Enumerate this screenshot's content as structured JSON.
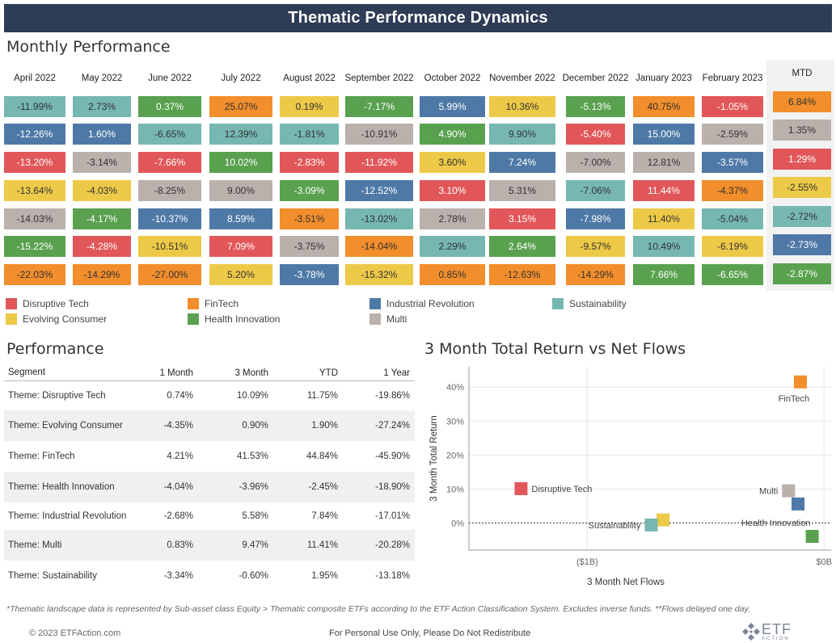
{
  "page": {
    "title": "Thematic Performance Dynamics",
    "monthly_heading": "Monthly Performance",
    "performance_heading": "Performance",
    "scatter_heading": "3 Month Total Return vs Net Flows",
    "footnote": "*Thematic landscape data is represented by Sub-asset class Equity > Thematic composite ETFs according to the ETF Action Classification System. Excludes inverse funds. **Flows delayed one day.",
    "copyright": "© 2023 ETFAction.com",
    "personal_use": "For Personal Use Only, Please Do Not Redistribute",
    "logo_text": "ETF",
    "logo_subtext": "ACTION"
  },
  "theme_colors": {
    "Disruptive Tech": "#e15759",
    "FinTech": "#f28e2b",
    "Industrial Revolution": "#4e79a7",
    "Sustainability": "#76b7b2",
    "Evolving Consumer": "#edc948",
    "Health Innovation": "#59a14f",
    "Multi": "#bab0ac"
  },
  "legend": [
    {
      "label": "Disruptive Tech",
      "theme": "Disruptive Tech"
    },
    {
      "label": "FinTech",
      "theme": "FinTech"
    },
    {
      "label": "Industrial Revolution",
      "theme": "Industrial Revolution"
    },
    {
      "label": "Sustainability",
      "theme": "Sustainability"
    },
    {
      "label": "Evolving Consumer",
      "theme": "Evolving Consumer"
    },
    {
      "label": "Health Innovation",
      "theme": "Health Innovation"
    },
    {
      "label": "Multi",
      "theme": "Multi"
    }
  ],
  "chart_data": [
    {
      "type": "heatmap",
      "title": "Monthly Performance",
      "columns": [
        {
          "header": "April 2022",
          "cells": [
            {
              "theme": "Sustainability",
              "value": "-11.99%"
            },
            {
              "theme": "Industrial Revolution",
              "value": "-12.26%"
            },
            {
              "theme": "Disruptive Tech",
              "value": "-13.20%"
            },
            {
              "theme": "Evolving Consumer",
              "value": "-13.64%"
            },
            {
              "theme": "Multi",
              "value": "-14.03%"
            },
            {
              "theme": "Health Innovation",
              "value": "-15.22%"
            },
            {
              "theme": "FinTech",
              "value": "-22.03%"
            }
          ]
        },
        {
          "header": "May 2022",
          "cells": [
            {
              "theme": "Sustainability",
              "value": "2.73%"
            },
            {
              "theme": "Industrial Revolution",
              "value": "1.60%"
            },
            {
              "theme": "Multi",
              "value": "-3.14%"
            },
            {
              "theme": "Evolving Consumer",
              "value": "-4.03%"
            },
            {
              "theme": "Health Innovation",
              "value": "-4.17%"
            },
            {
              "theme": "Disruptive Tech",
              "value": "-4.28%"
            },
            {
              "theme": "FinTech",
              "value": "-14.29%"
            }
          ]
        },
        {
          "header": "June 2022",
          "cells": [
            {
              "theme": "Health Innovation",
              "value": "0.37%"
            },
            {
              "theme": "Sustainability",
              "value": "-6.65%"
            },
            {
              "theme": "Disruptive Tech",
              "value": "-7.66%"
            },
            {
              "theme": "Multi",
              "value": "-8.25%"
            },
            {
              "theme": "Industrial Revolution",
              "value": "-10.37%"
            },
            {
              "theme": "Evolving Consumer",
              "value": "-10.51%"
            },
            {
              "theme": "FinTech",
              "value": "-27.00%"
            }
          ]
        },
        {
          "header": "July 2022",
          "cells": [
            {
              "theme": "FinTech",
              "value": "25.07%"
            },
            {
              "theme": "Sustainability",
              "value": "12.39%"
            },
            {
              "theme": "Health Innovation",
              "value": "10.02%"
            },
            {
              "theme": "Multi",
              "value": "9.00%"
            },
            {
              "theme": "Industrial Revolution",
              "value": "8.59%"
            },
            {
              "theme": "Disruptive Tech",
              "value": "7.09%"
            },
            {
              "theme": "Evolving Consumer",
              "value": "5.20%"
            }
          ]
        },
        {
          "header": "August 2022",
          "cells": [
            {
              "theme": "Evolving Consumer",
              "value": "0.19%"
            },
            {
              "theme": "Sustainability",
              "value": "-1.81%"
            },
            {
              "theme": "Disruptive Tech",
              "value": "-2.83%"
            },
            {
              "theme": "Health Innovation",
              "value": "-3.09%"
            },
            {
              "theme": "FinTech",
              "value": "-3.51%"
            },
            {
              "theme": "Multi",
              "value": "-3.75%"
            },
            {
              "theme": "Industrial Revolution",
              "value": "-3.78%"
            }
          ]
        },
        {
          "header": "September 2022",
          "cells": [
            {
              "theme": "Health Innovation",
              "value": "-7.17%"
            },
            {
              "theme": "Multi",
              "value": "-10.91%"
            },
            {
              "theme": "Disruptive Tech",
              "value": "-11.92%"
            },
            {
              "theme": "Industrial Revolution",
              "value": "-12.52%"
            },
            {
              "theme": "Sustainability",
              "value": "-13.02%"
            },
            {
              "theme": "FinTech",
              "value": "-14.04%"
            },
            {
              "theme": "Evolving Consumer",
              "value": "-15.32%"
            }
          ]
        },
        {
          "header": "October 2022",
          "cells": [
            {
              "theme": "Industrial Revolution",
              "value": "5.99%"
            },
            {
              "theme": "Health Innovation",
              "value": "4.90%"
            },
            {
              "theme": "Evolving Consumer",
              "value": "3.60%"
            },
            {
              "theme": "Disruptive Tech",
              "value": "3.10%"
            },
            {
              "theme": "Multi",
              "value": "2.78%"
            },
            {
              "theme": "Sustainability",
              "value": "2.29%"
            },
            {
              "theme": "FinTech",
              "value": "0.85%"
            }
          ]
        },
        {
          "header": "November 2022",
          "cells": [
            {
              "theme": "Evolving Consumer",
              "value": "10.36%"
            },
            {
              "theme": "Sustainability",
              "value": "9.90%"
            },
            {
              "theme": "Industrial Revolution",
              "value": "7.24%"
            },
            {
              "theme": "Multi",
              "value": "5.31%"
            },
            {
              "theme": "Disruptive Tech",
              "value": "3.15%"
            },
            {
              "theme": "Health Innovation",
              "value": "2.64%"
            },
            {
              "theme": "FinTech",
              "value": "-12.63%"
            }
          ]
        },
        {
          "header": "December 2022",
          "cells": [
            {
              "theme": "Health Innovation",
              "value": "-5.13%"
            },
            {
              "theme": "Disruptive Tech",
              "value": "-5.40%"
            },
            {
              "theme": "Multi",
              "value": "-7.00%"
            },
            {
              "theme": "Sustainability",
              "value": "-7.06%"
            },
            {
              "theme": "Industrial Revolution",
              "value": "-7.98%"
            },
            {
              "theme": "Evolving Consumer",
              "value": "-9.57%"
            },
            {
              "theme": "FinTech",
              "value": "-14.29%"
            }
          ]
        },
        {
          "header": "January 2023",
          "cells": [
            {
              "theme": "FinTech",
              "value": "40.75%"
            },
            {
              "theme": "Industrial Revolution",
              "value": "15.00%"
            },
            {
              "theme": "Multi",
              "value": "12.81%"
            },
            {
              "theme": "Disruptive Tech",
              "value": "11.44%"
            },
            {
              "theme": "Evolving Consumer",
              "value": "11.40%"
            },
            {
              "theme": "Sustainability",
              "value": "10.49%"
            },
            {
              "theme": "Health Innovation",
              "value": "7.66%"
            }
          ]
        },
        {
          "header": "February 2023",
          "cells": [
            {
              "theme": "Disruptive Tech",
              "value": "-1.05%"
            },
            {
              "theme": "Multi",
              "value": "-2.59%"
            },
            {
              "theme": "Industrial Revolution",
              "value": "-3.57%"
            },
            {
              "theme": "FinTech",
              "value": "-4.37%"
            },
            {
              "theme": "Sustainability",
              "value": "-5.04%"
            },
            {
              "theme": "Evolving Consumer",
              "value": "-6.19%"
            },
            {
              "theme": "Health Innovation",
              "value": "-6.65%"
            }
          ]
        },
        {
          "header": "MTD",
          "cells": [
            {
              "theme": "FinTech",
              "value": "6.84%"
            },
            {
              "theme": "Multi",
              "value": "1.35%"
            },
            {
              "theme": "Disruptive Tech",
              "value": "1.29%"
            },
            {
              "theme": "Evolving Consumer",
              "value": "-2.55%"
            },
            {
              "theme": "Sustainability",
              "value": "-2.72%"
            },
            {
              "theme": "Industrial Revolution",
              "value": "-2.73%"
            },
            {
              "theme": "Health Innovation",
              "value": "-2.87%"
            }
          ]
        }
      ]
    },
    {
      "type": "table",
      "title": "Performance",
      "columns": [
        "Segment",
        "1 Month",
        "3 Month",
        "YTD",
        "1 Year"
      ],
      "rows": [
        [
          "Theme: Disruptive Tech",
          "0.74%",
          "10.09%",
          "11.75%",
          "-19.86%"
        ],
        [
          "Theme: Evolving Consumer",
          "-4.35%",
          "0.90%",
          "1.90%",
          "-27.24%"
        ],
        [
          "Theme: FinTech",
          "4.21%",
          "41.53%",
          "44.84%",
          "-45.90%"
        ],
        [
          "Theme: Health Innovation",
          "-4.04%",
          "-3.96%",
          "-2.45%",
          "-18.90%"
        ],
        [
          "Theme: Industrial Revolution",
          "-2.68%",
          "5.58%",
          "7.84%",
          "-17.01%"
        ],
        [
          "Theme: Multi",
          "0.83%",
          "9.47%",
          "11.41%",
          "-20.28%"
        ],
        [
          "Theme: Sustainability",
          "-3.34%",
          "-0.60%",
          "1.95%",
          "-13.18%"
        ]
      ]
    },
    {
      "type": "scatter",
      "title": "3 Month Total Return vs Net Flows",
      "xlabel": "3 Month Net Flows",
      "ylabel": "3 Month Total Return",
      "x_unit": "$B",
      "xlim": [
        -1.5,
        0.03
      ],
      "ylim": [
        -8,
        46
      ],
      "x_ticks": [
        {
          "value": -1,
          "label": "($1B)"
        },
        {
          "value": 0,
          "label": "$0B"
        }
      ],
      "y_ticks": [
        {
          "value": 0,
          "label": "0%"
        },
        {
          "value": 10,
          "label": "10%"
        },
        {
          "value": 20,
          "label": "20%"
        },
        {
          "value": 30,
          "label": "30%"
        },
        {
          "value": 40,
          "label": "40%"
        }
      ],
      "grid": true,
      "reference_line_y": 0,
      "points": [
        {
          "name": "FinTech",
          "theme": "FinTech",
          "x": -0.1,
          "y": 41.53,
          "label": "FinTech",
          "label_pos": "below"
        },
        {
          "name": "Disruptive Tech",
          "theme": "Disruptive Tech",
          "x": -1.28,
          "y": 10.09,
          "label": "Disruptive Tech",
          "label_pos": "right"
        },
        {
          "name": "Multi",
          "theme": "Multi",
          "x": -0.15,
          "y": 9.47,
          "label": "Multi",
          "label_pos": "left"
        },
        {
          "name": "Industrial Revolution",
          "theme": "Industrial Revolution",
          "x": -0.11,
          "y": 5.58,
          "label": "",
          "label_pos": "none"
        },
        {
          "name": "Health Innovation",
          "theme": "Health Innovation",
          "x": -0.05,
          "y": -3.96,
          "label": "Health Innovation",
          "label_pos": "above-left"
        },
        {
          "name": "Evolving Consumer",
          "theme": "Evolving Consumer",
          "x": -0.68,
          "y": 0.9,
          "label": "",
          "label_pos": "none"
        },
        {
          "name": "Sustainability",
          "theme": "Sustainability",
          "x": -0.73,
          "y": -0.6,
          "label": "Sustainability",
          "label_pos": "left"
        }
      ]
    }
  ]
}
